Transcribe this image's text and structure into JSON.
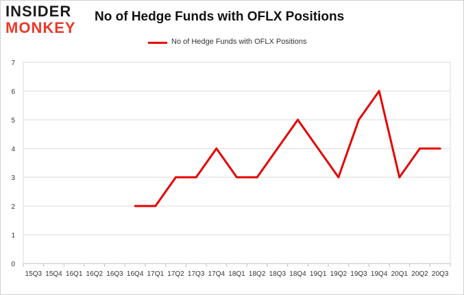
{
  "logo": {
    "line1": "INSIDER",
    "line2": "MONKEY"
  },
  "chart_data": {
    "type": "line",
    "title": "No of Hedge Funds with OFLX Positions",
    "xlabel": "",
    "ylabel": "",
    "ylim": [
      0,
      7
    ],
    "yticks": [
      0,
      1,
      2,
      3,
      4,
      5,
      6,
      7
    ],
    "grid": true,
    "legend_position": "top-center",
    "categories": [
      "15Q3",
      "15Q4",
      "16Q1",
      "16Q2",
      "16Q3",
      "16Q4",
      "17Q1",
      "17Q2",
      "17Q3",
      "17Q4",
      "18Q1",
      "18Q2",
      "18Q3",
      "18Q4",
      "19Q1",
      "19Q2",
      "19Q3",
      "19Q4",
      "20Q1",
      "20Q2",
      "20Q3"
    ],
    "series": [
      {
        "name": "No of Hedge Funds with OFLX Positions",
        "color": "#e60000",
        "values": [
          null,
          null,
          null,
          null,
          null,
          2,
          2,
          3,
          3,
          4,
          3,
          3,
          4,
          5,
          4,
          3,
          5,
          6,
          3,
          4,
          4
        ]
      }
    ]
  }
}
